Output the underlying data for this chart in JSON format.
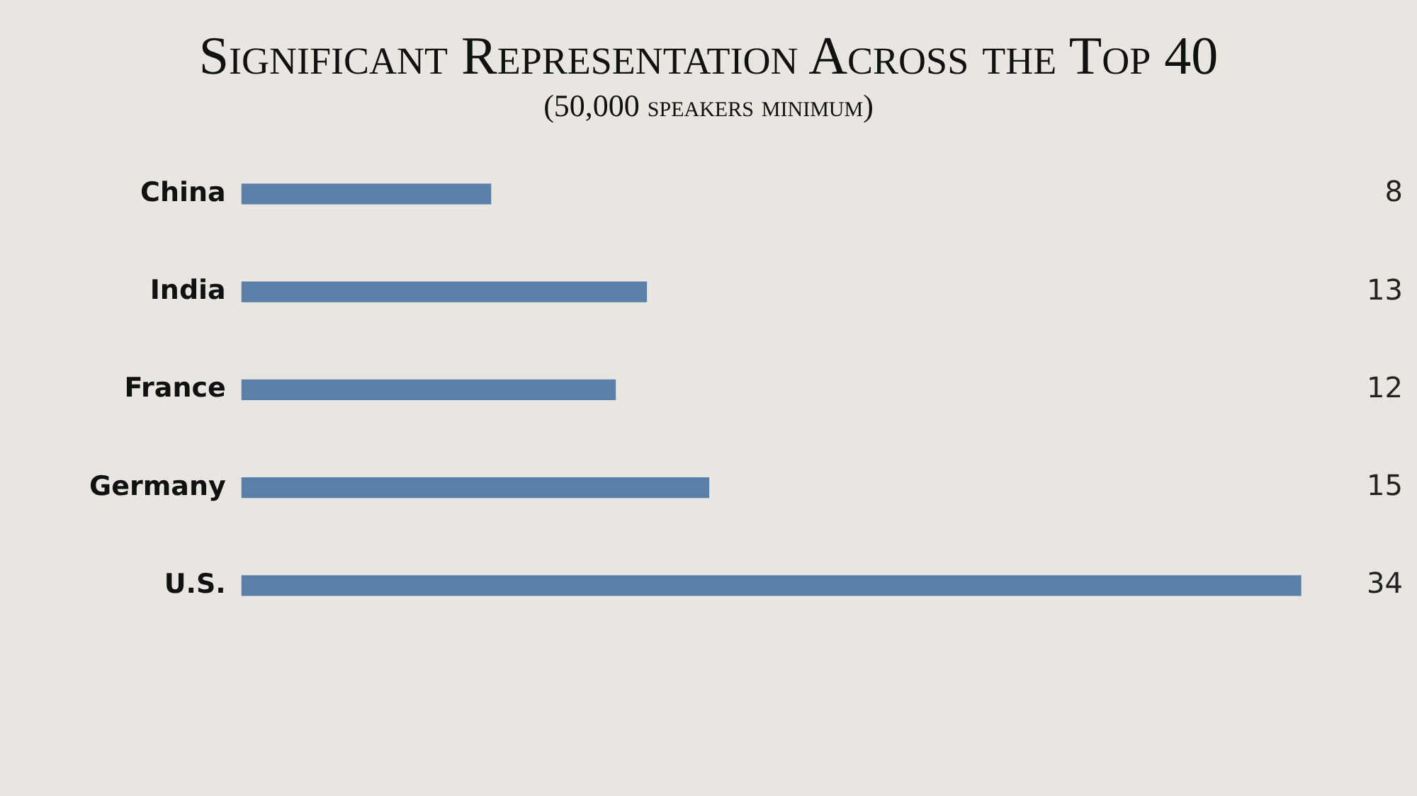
{
  "chart_data": {
    "type": "bar",
    "orientation": "horizontal",
    "title": "Significant Representation Across the Top 40",
    "subtitle": "(50,000 speakers minimum)",
    "categories": [
      "China",
      "India",
      "France",
      "Germany",
      "U.S."
    ],
    "values": [
      8,
      13,
      12,
      15,
      34
    ],
    "color": "#5a7fa8",
    "data_labels": true
  }
}
